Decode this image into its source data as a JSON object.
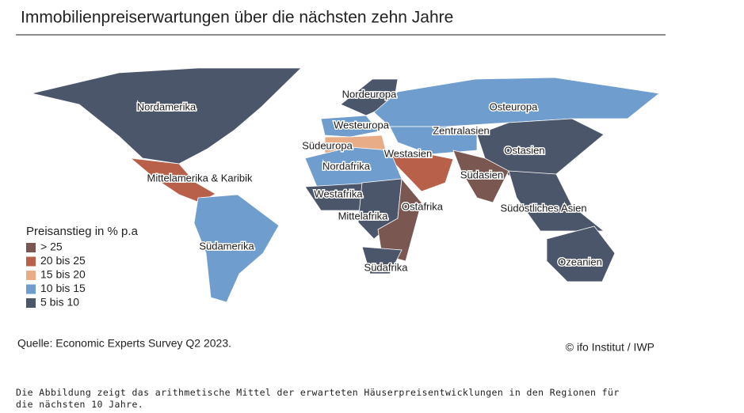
{
  "title": "Immobilienpreiserwartungen über die nächsten zehn Jahre",
  "regions": [
    {
      "label": "Nordamerika",
      "color": "#4c566a"
    },
    {
      "label": "Mittelamerika & Karibik",
      "color": "#b9604a"
    },
    {
      "label": "Südamerika",
      "color": "#6f9dcd"
    },
    {
      "label": "Nordeuropa",
      "color": "#4c566a"
    },
    {
      "label": "Westeuropa",
      "color": "#6f9dcd"
    },
    {
      "label": "Südeuropa",
      "color": "#e8ad86"
    },
    {
      "label": "Osteuropa",
      "color": "#6f9dcd"
    },
    {
      "label": "Zentralasien",
      "color": "#6f9dcd"
    },
    {
      "label": "Westasien",
      "color": "#b9604a"
    },
    {
      "label": "Nordafrika",
      "color": "#6f9dcd"
    },
    {
      "label": "Westafrika",
      "color": "#4c566a"
    },
    {
      "label": "Mittelafrika",
      "color": "#4c566a"
    },
    {
      "label": "Ostafrika",
      "color": "#7a5750"
    },
    {
      "label": "Südafrika",
      "color": "#4c566a"
    },
    {
      "label": "Ostasien",
      "color": "#4c566a"
    },
    {
      "label": "Südasien",
      "color": "#7a5750"
    },
    {
      "label": "Südöstliches Asien",
      "color": "#4c566a"
    },
    {
      "label": "Ozeanien",
      "color": "#4c566a"
    }
  ],
  "legend": {
    "title": "Preisanstieg in % p.a",
    "items": [
      {
        "label": "> 25",
        "color": "#7a5750"
      },
      {
        "label": "20 bis 25",
        "color": "#b9604a"
      },
      {
        "label": "15 bis 20",
        "color": "#e8ad86"
      },
      {
        "label": "10 bis 15",
        "color": "#6f9dcd"
      },
      {
        "label": "5 bis 10",
        "color": "#4c566a"
      }
    ]
  },
  "source": "Quelle: Economic Experts Survey Q2 2023.",
  "copyright": "© ifo Institut / IWP",
  "caption": "Die Abbildung zeigt das arithmetische Mittel der erwarteten Häuserpreisentwicklungen in den Regionen für die nächsten 10 Jahre."
}
